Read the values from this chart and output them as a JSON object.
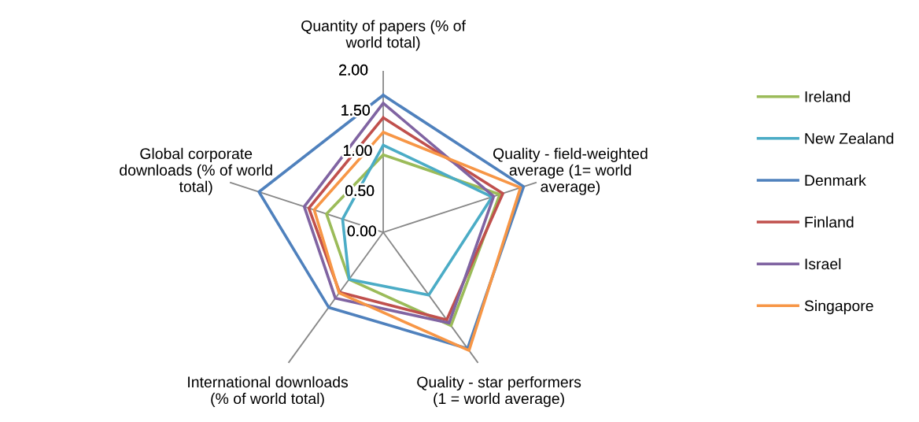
{
  "chart_data": {
    "type": "radar",
    "categories": [
      "Quantity of papers (% of\nworld total)",
      "Quality - field-weighted\naverage (1= world\naverage)",
      "Quality - star performers\n(1 = world average)",
      "International downloads\n(% of world total)",
      "Global corporate\ndownloads (% of world\ntotal)"
    ],
    "ylim": [
      0,
      2
    ],
    "yticks": [
      {
        "value": 0,
        "label": "0.00"
      },
      {
        "value": 0.5,
        "label": "0.50"
      },
      {
        "value": 1,
        "label": "1.00"
      },
      {
        "value": 1.5,
        "label": "1.50"
      },
      {
        "value": 2,
        "label": "2.00"
      }
    ],
    "grid": "x",
    "legend": "right",
    "marker": "none",
    "line_style": "solid",
    "series": [
      {
        "name": "Ireland",
        "color": "#9bbb59",
        "values": [
          0.96,
          1.52,
          1.43,
          0.72,
          0.74
        ]
      },
      {
        "name": "New Zealand",
        "color": "#4bacc6",
        "values": [
          1.08,
          1.42,
          0.96,
          0.72,
          0.53
        ]
      },
      {
        "name": "Denmark",
        "color": "#4f81bd",
        "values": [
          1.7,
          1.83,
          1.78,
          1.15,
          1.62
        ]
      },
      {
        "name": "Finland",
        "color": "#c0504d",
        "values": [
          1.42,
          1.56,
          1.34,
          0.92,
          0.97
        ]
      },
      {
        "name": "Israel",
        "color": "#8064a2",
        "values": [
          1.6,
          1.44,
          1.39,
          1.01,
          1.03
        ]
      },
      {
        "name": "Singapore",
        "color": "#f79646",
        "values": [
          1.24,
          1.79,
          1.81,
          0.93,
          0.9
        ]
      }
    ]
  }
}
